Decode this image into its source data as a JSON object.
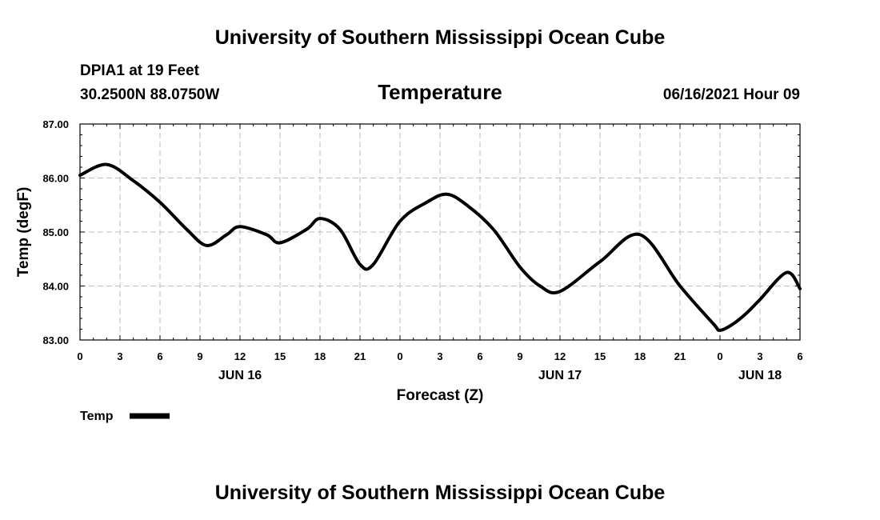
{
  "header": {
    "top_title": "University of Southern Mississippi Ocean Cube",
    "station": "DPIA1 at 19 Feet",
    "coords": "30.2500N  88.0750W",
    "datetime": "06/16/2021 Hour 09"
  },
  "footer": {
    "bottom_title": "University of Southern Mississippi Ocean Cube"
  },
  "chart_data": {
    "type": "line",
    "title": "Temperature",
    "xlabel": "Forecast (Z)",
    "ylabel": "Temp (degF)",
    "xlim": [
      0,
      54
    ],
    "ylim": [
      83.0,
      87.0
    ],
    "grid": true,
    "y_ticks": [
      "83.00",
      "84.00",
      "85.00",
      "86.00",
      "87.00"
    ],
    "y_tick_values": [
      83,
      84,
      85,
      86,
      87
    ],
    "x_tick_hours": [
      0,
      3,
      6,
      9,
      12,
      15,
      18,
      21,
      24,
      27,
      30,
      33,
      36,
      39,
      42,
      45,
      48,
      51,
      54
    ],
    "x_tick_labels": [
      "0",
      "3",
      "6",
      "9",
      "12",
      "15",
      "18",
      "21",
      "0",
      "3",
      "6",
      "9",
      "12",
      "15",
      "18",
      "21",
      "0",
      "3",
      "6"
    ],
    "day_labels": [
      {
        "label": "JUN 16",
        "hour": 12
      },
      {
        "label": "JUN 17",
        "hour": 36
      },
      {
        "label": "JUN 18",
        "hour": 51
      }
    ],
    "legend": {
      "label": "Temp",
      "position": "bottom-left"
    },
    "series": [
      {
        "name": "Temp",
        "x": [
          0,
          2,
          4,
          6,
          8,
          9.5,
          11,
          12,
          14,
          15,
          17,
          18,
          19.5,
          21,
          22,
          24,
          26,
          27.5,
          29,
          31,
          33,
          34.5,
          36,
          39,
          42,
          45,
          47.5,
          48,
          49,
          50,
          51,
          53,
          54
        ],
        "y": [
          86.05,
          86.25,
          85.95,
          85.55,
          85.05,
          84.75,
          84.95,
          85.1,
          84.95,
          84.8,
          85.05,
          85.25,
          85.05,
          84.4,
          84.4,
          85.2,
          85.55,
          85.7,
          85.5,
          85.05,
          84.35,
          84.0,
          83.9,
          84.45,
          84.95,
          84.0,
          83.3,
          83.18,
          83.3,
          83.5,
          83.75,
          84.25,
          83.95
        ]
      }
    ]
  }
}
